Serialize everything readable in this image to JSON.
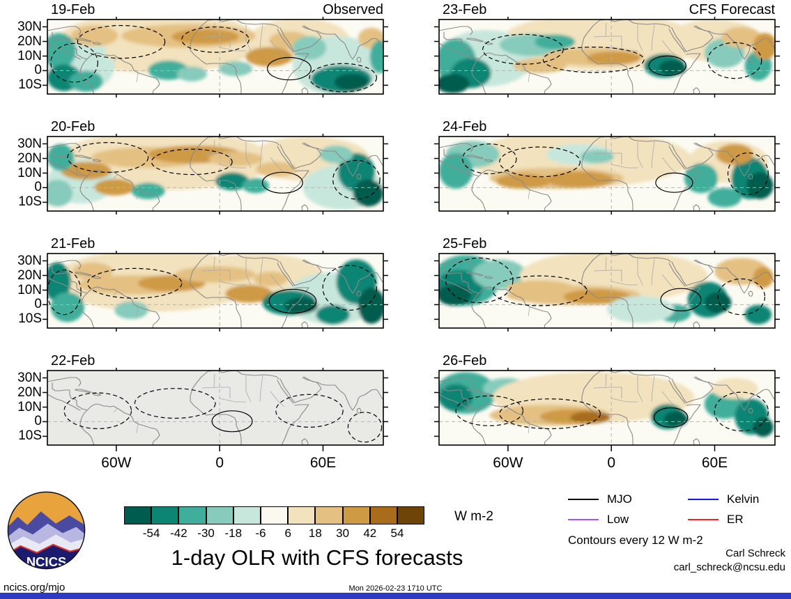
{
  "meta": {
    "logo_text": "NCICS",
    "footer_left": "ncics.org/mjo",
    "footer_center": "Mon 2026-02-23 1710 UTC",
    "credit_name": "Carl Schreck",
    "credit_email": "carl_schreck@ncsu.edu",
    "contour_note": "Contours every 12 W m-2"
  },
  "chart_data": {
    "type": "heatmap",
    "title": "1-day OLR with CFS forecasts",
    "units": "W m-2",
    "contour_interval_wm2": 12,
    "axes": {
      "lat_ticks": [
        "30N",
        "20N",
        "10N",
        "0",
        "10S"
      ],
      "lon_ticks": [
        "60W",
        "0",
        "60E"
      ]
    },
    "colorbar": {
      "tick_labels": [
        "-54",
        "-42",
        "-30",
        "-18",
        "-6",
        "6",
        "18",
        "30",
        "42",
        "54"
      ],
      "levels": [
        -54,
        -42,
        -30,
        -18,
        -6,
        6,
        18,
        30,
        42,
        54
      ],
      "colors": [
        "#005c4e",
        "#0d8574",
        "#3fae9b",
        "#86cbbb",
        "#c7e7dd",
        "#fbf9ef",
        "#f2e2bd",
        "#e4c183",
        "#cf9a44",
        "#a86c1b",
        "#6e4408"
      ]
    },
    "legend": [
      {
        "label": "MJO",
        "color": "#000000"
      },
      {
        "label": "Kelvin",
        "color": "#1414ff"
      },
      {
        "label": "Low",
        "color": "#b14fff"
      },
      {
        "label": "ER",
        "color": "#ff2222"
      }
    ],
    "columns": [
      "Observed",
      "CFS Forecast"
    ],
    "panels": [
      {
        "date": "19-Feb",
        "column": "Observed",
        "corner_label": "Observed",
        "blank": false,
        "blobs": [
          [
            0.33,
            0.3,
            0.3,
            0.42,
            6
          ],
          [
            0.75,
            0.28,
            0.15,
            0.3,
            6
          ],
          [
            0.1,
            0.62,
            0.1,
            0.35,
            4
          ],
          [
            0.86,
            0.62,
            0.13,
            0.4,
            4
          ],
          [
            0.42,
            0.22,
            0.2,
            0.16,
            7
          ],
          [
            0.47,
            0.23,
            0.1,
            0.1,
            8
          ],
          [
            0.14,
            0.22,
            0.07,
            0.14,
            7
          ],
          [
            0.27,
            0.46,
            0.1,
            0.12,
            6
          ],
          [
            0.66,
            0.5,
            0.07,
            0.13,
            8
          ],
          [
            0.72,
            0.28,
            0.06,
            0.12,
            7
          ],
          [
            0.965,
            0.25,
            0.04,
            0.14,
            7
          ],
          [
            0.035,
            0.42,
            0.05,
            0.24,
            2
          ],
          [
            0.05,
            0.78,
            0.05,
            0.18,
            1
          ],
          [
            0.115,
            0.83,
            0.05,
            0.14,
            2
          ],
          [
            0.36,
            0.68,
            0.06,
            0.13,
            2
          ],
          [
            0.43,
            0.73,
            0.045,
            0.1,
            3
          ],
          [
            0.56,
            0.66,
            0.05,
            0.1,
            3
          ],
          [
            0.78,
            0.38,
            0.05,
            0.16,
            3
          ],
          [
            0.875,
            0.8,
            0.09,
            0.18,
            1
          ],
          [
            0.905,
            0.84,
            0.05,
            0.11,
            0
          ],
          [
            0.99,
            0.5,
            0.03,
            0.22,
            2
          ]
        ],
        "contours": [
          [
            0.22,
            0.3,
            0.13,
            0.22,
            0
          ],
          [
            0.5,
            0.27,
            0.1,
            0.17,
            0
          ],
          [
            0.72,
            0.66,
            0.065,
            0.15,
            1
          ],
          [
            0.88,
            0.78,
            0.1,
            0.19,
            0
          ],
          [
            0.08,
            0.58,
            0.07,
            0.26,
            0
          ]
        ]
      },
      {
        "date": "20-Feb",
        "column": "Observed",
        "blank": false,
        "blobs": [
          [
            0.35,
            0.32,
            0.32,
            0.4,
            6
          ],
          [
            0.78,
            0.3,
            0.18,
            0.3,
            6
          ],
          [
            0.88,
            0.68,
            0.12,
            0.3,
            4
          ],
          [
            0.1,
            0.6,
            0.1,
            0.3,
            4
          ],
          [
            0.3,
            0.28,
            0.17,
            0.14,
            7
          ],
          [
            0.44,
            0.24,
            0.14,
            0.12,
            8
          ],
          [
            0.56,
            0.3,
            0.08,
            0.1,
            7
          ],
          [
            0.115,
            0.46,
            0.075,
            0.12,
            8
          ],
          [
            0.2,
            0.68,
            0.06,
            0.11,
            8
          ],
          [
            0.68,
            0.44,
            0.06,
            0.1,
            7
          ],
          [
            0.04,
            0.28,
            0.04,
            0.18,
            2
          ],
          [
            0.03,
            0.76,
            0.045,
            0.18,
            3
          ],
          [
            0.3,
            0.73,
            0.05,
            0.11,
            2
          ],
          [
            0.55,
            0.6,
            0.05,
            0.12,
            1
          ],
          [
            0.62,
            0.66,
            0.04,
            0.1,
            2
          ],
          [
            0.92,
            0.48,
            0.055,
            0.26,
            1
          ],
          [
            0.955,
            0.76,
            0.045,
            0.18,
            0
          ],
          [
            0.86,
            0.24,
            0.05,
            0.12,
            3
          ]
        ],
        "contours": [
          [
            0.18,
            0.28,
            0.12,
            0.2,
            0
          ],
          [
            0.43,
            0.34,
            0.12,
            0.17,
            0
          ],
          [
            0.7,
            0.62,
            0.06,
            0.14,
            1
          ],
          [
            0.92,
            0.58,
            0.07,
            0.26,
            0
          ]
        ]
      },
      {
        "date": "21-Feb",
        "column": "Observed",
        "blank": false,
        "blobs": [
          [
            0.32,
            0.36,
            0.3,
            0.42,
            6
          ],
          [
            0.62,
            0.28,
            0.2,
            0.28,
            6
          ],
          [
            0.85,
            0.6,
            0.14,
            0.35,
            4
          ],
          [
            0.26,
            0.42,
            0.17,
            0.13,
            7
          ],
          [
            0.37,
            0.4,
            0.1,
            0.11,
            8
          ],
          [
            0.5,
            0.28,
            0.12,
            0.11,
            7
          ],
          [
            0.135,
            0.24,
            0.06,
            0.12,
            7
          ],
          [
            0.6,
            0.54,
            0.07,
            0.12,
            8
          ],
          [
            0.665,
            0.34,
            0.05,
            0.1,
            7
          ],
          [
            0.03,
            0.38,
            0.04,
            0.26,
            1
          ],
          [
            0.06,
            0.72,
            0.05,
            0.2,
            2
          ],
          [
            0.25,
            0.76,
            0.05,
            0.12,
            3
          ],
          [
            0.72,
            0.66,
            0.08,
            0.17,
            1
          ],
          [
            0.755,
            0.7,
            0.05,
            0.11,
            0
          ],
          [
            0.92,
            0.38,
            0.06,
            0.3,
            1
          ],
          [
            0.965,
            0.7,
            0.04,
            0.24,
            0
          ],
          [
            0.85,
            0.82,
            0.05,
            0.13,
            1
          ]
        ],
        "contours": [
          [
            0.26,
            0.4,
            0.14,
            0.2,
            0
          ],
          [
            0.73,
            0.64,
            0.07,
            0.16,
            1
          ],
          [
            0.9,
            0.46,
            0.08,
            0.3,
            0
          ],
          [
            0.05,
            0.52,
            0.05,
            0.3,
            0
          ]
        ]
      },
      {
        "date": "22-Feb",
        "column": "Observed",
        "blank": true,
        "blobs": [],
        "contours": [
          [
            0.15,
            0.54,
            0.1,
            0.24,
            0
          ],
          [
            0.38,
            0.44,
            0.12,
            0.2,
            0
          ],
          [
            0.55,
            0.68,
            0.06,
            0.14,
            1
          ],
          [
            0.78,
            0.54,
            0.1,
            0.22,
            0
          ],
          [
            0.945,
            0.76,
            0.05,
            0.2,
            0
          ]
        ]
      },
      {
        "date": "23-Feb",
        "column": "CFS Forecast",
        "corner_label": "CFS Forecast",
        "blank": false,
        "blobs": [
          [
            0.48,
            0.3,
            0.3,
            0.38,
            6
          ],
          [
            0.82,
            0.28,
            0.14,
            0.28,
            6
          ],
          [
            0.14,
            0.52,
            0.14,
            0.38,
            4
          ],
          [
            0.05,
            0.56,
            0.06,
            0.3,
            2
          ],
          [
            0.095,
            0.72,
            0.06,
            0.2,
            1
          ],
          [
            0.04,
            0.86,
            0.05,
            0.13,
            0
          ],
          [
            0.28,
            0.34,
            0.1,
            0.15,
            3
          ],
          [
            0.345,
            0.3,
            0.06,
            0.1,
            2
          ],
          [
            0.67,
            0.62,
            0.06,
            0.16,
            1
          ],
          [
            0.695,
            0.65,
            0.04,
            0.1,
            0
          ],
          [
            0.85,
            0.45,
            0.06,
            0.2,
            3
          ],
          [
            0.95,
            0.62,
            0.04,
            0.2,
            2
          ],
          [
            0.46,
            0.5,
            0.15,
            0.12,
            7
          ],
          [
            0.52,
            0.52,
            0.08,
            0.09,
            8
          ],
          [
            0.3,
            0.62,
            0.08,
            0.1,
            7
          ],
          [
            0.9,
            0.24,
            0.06,
            0.14,
            7
          ],
          [
            0.97,
            0.36,
            0.035,
            0.18,
            8
          ],
          [
            0.72,
            0.25,
            0.08,
            0.12,
            6
          ]
        ],
        "contours": [
          [
            0.25,
            0.4,
            0.12,
            0.2,
            0
          ],
          [
            0.68,
            0.62,
            0.055,
            0.13,
            1
          ],
          [
            0.88,
            0.55,
            0.08,
            0.24,
            0
          ],
          [
            0.46,
            0.54,
            0.15,
            0.17,
            0
          ]
        ]
      },
      {
        "date": "24-Feb",
        "column": "CFS Forecast",
        "blank": false,
        "blobs": [
          [
            0.42,
            0.3,
            0.33,
            0.38,
            6
          ],
          [
            0.86,
            0.34,
            0.12,
            0.28,
            6
          ],
          [
            0.1,
            0.24,
            0.08,
            0.18,
            3
          ],
          [
            0.05,
            0.46,
            0.05,
            0.24,
            2
          ],
          [
            0.42,
            0.24,
            0.1,
            0.14,
            4
          ],
          [
            0.47,
            0.27,
            0.05,
            0.09,
            3
          ],
          [
            0.35,
            0.56,
            0.2,
            0.14,
            7
          ],
          [
            0.42,
            0.58,
            0.1,
            0.11,
            8
          ],
          [
            0.25,
            0.6,
            0.08,
            0.1,
            8
          ],
          [
            0.78,
            0.56,
            0.05,
            0.2,
            2
          ],
          [
            0.925,
            0.56,
            0.055,
            0.28,
            1
          ],
          [
            0.955,
            0.66,
            0.04,
            0.18,
            0
          ],
          [
            0.85,
            0.82,
            0.05,
            0.13,
            2
          ],
          [
            0.88,
            0.24,
            0.055,
            0.14,
            8
          ],
          [
            0.7,
            0.36,
            0.06,
            0.1,
            6
          ]
        ],
        "contours": [
          [
            0.7,
            0.62,
            0.055,
            0.13,
            1
          ],
          [
            0.3,
            0.34,
            0.12,
            0.2,
            0
          ],
          [
            0.92,
            0.5,
            0.06,
            0.28,
            0
          ],
          [
            0.15,
            0.3,
            0.08,
            0.2,
            0
          ]
        ]
      },
      {
        "date": "25-Feb",
        "column": "CFS Forecast",
        "blank": false,
        "blobs": [
          [
            0.08,
            0.36,
            0.1,
            0.34,
            2
          ],
          [
            0.06,
            0.46,
            0.07,
            0.24,
            1
          ],
          [
            0.045,
            0.56,
            0.05,
            0.14,
            0
          ],
          [
            0.18,
            0.28,
            0.08,
            0.2,
            3
          ],
          [
            0.52,
            0.3,
            0.28,
            0.34,
            6
          ],
          [
            0.4,
            0.56,
            0.2,
            0.13,
            7
          ],
          [
            0.47,
            0.58,
            0.1,
            0.1,
            8
          ],
          [
            0.3,
            0.46,
            0.1,
            0.1,
            7
          ],
          [
            0.8,
            0.62,
            0.06,
            0.24,
            1
          ],
          [
            0.83,
            0.66,
            0.04,
            0.14,
            0
          ],
          [
            0.95,
            0.82,
            0.04,
            0.13,
            1
          ],
          [
            0.7,
            0.8,
            0.05,
            0.12,
            2
          ],
          [
            0.9,
            0.24,
            0.08,
            0.18,
            7
          ],
          [
            0.965,
            0.32,
            0.03,
            0.14,
            8
          ],
          [
            0.6,
            0.75,
            0.1,
            0.18,
            4
          ]
        ],
        "contours": [
          [
            0.72,
            0.62,
            0.06,
            0.15,
            1
          ],
          [
            0.3,
            0.5,
            0.14,
            0.2,
            0
          ],
          [
            0.9,
            0.58,
            0.07,
            0.24,
            0
          ],
          [
            0.12,
            0.36,
            0.1,
            0.3,
            0
          ]
        ]
      },
      {
        "date": "26-Feb",
        "column": "CFS Forecast",
        "blank": false,
        "blobs": [
          [
            0.08,
            0.3,
            0.09,
            0.28,
            2
          ],
          [
            0.05,
            0.36,
            0.05,
            0.18,
            1
          ],
          [
            0.2,
            0.24,
            0.07,
            0.14,
            3
          ],
          [
            0.45,
            0.24,
            0.1,
            0.14,
            4
          ],
          [
            0.5,
            0.27,
            0.05,
            0.09,
            3
          ],
          [
            0.46,
            0.36,
            0.3,
            0.34,
            6
          ],
          [
            0.33,
            0.6,
            0.18,
            0.14,
            7
          ],
          [
            0.4,
            0.62,
            0.1,
            0.1,
            8
          ],
          [
            0.45,
            0.63,
            0.06,
            0.08,
            9
          ],
          [
            0.68,
            0.62,
            0.05,
            0.17,
            1
          ],
          [
            0.705,
            0.65,
            0.035,
            0.1,
            0
          ],
          [
            0.85,
            0.45,
            0.06,
            0.2,
            2
          ],
          [
            0.93,
            0.62,
            0.05,
            0.24,
            1
          ],
          [
            0.965,
            0.76,
            0.03,
            0.13,
            0
          ],
          [
            0.88,
            0.24,
            0.07,
            0.14,
            6
          ],
          [
            0.6,
            0.4,
            0.07,
            0.1,
            6
          ]
        ],
        "contours": [
          [
            0.69,
            0.63,
            0.05,
            0.13,
            1
          ],
          [
            0.33,
            0.58,
            0.15,
            0.2,
            0
          ],
          [
            0.9,
            0.55,
            0.08,
            0.26,
            0
          ],
          [
            0.15,
            0.54,
            0.1,
            0.2,
            0
          ]
        ]
      }
    ]
  }
}
